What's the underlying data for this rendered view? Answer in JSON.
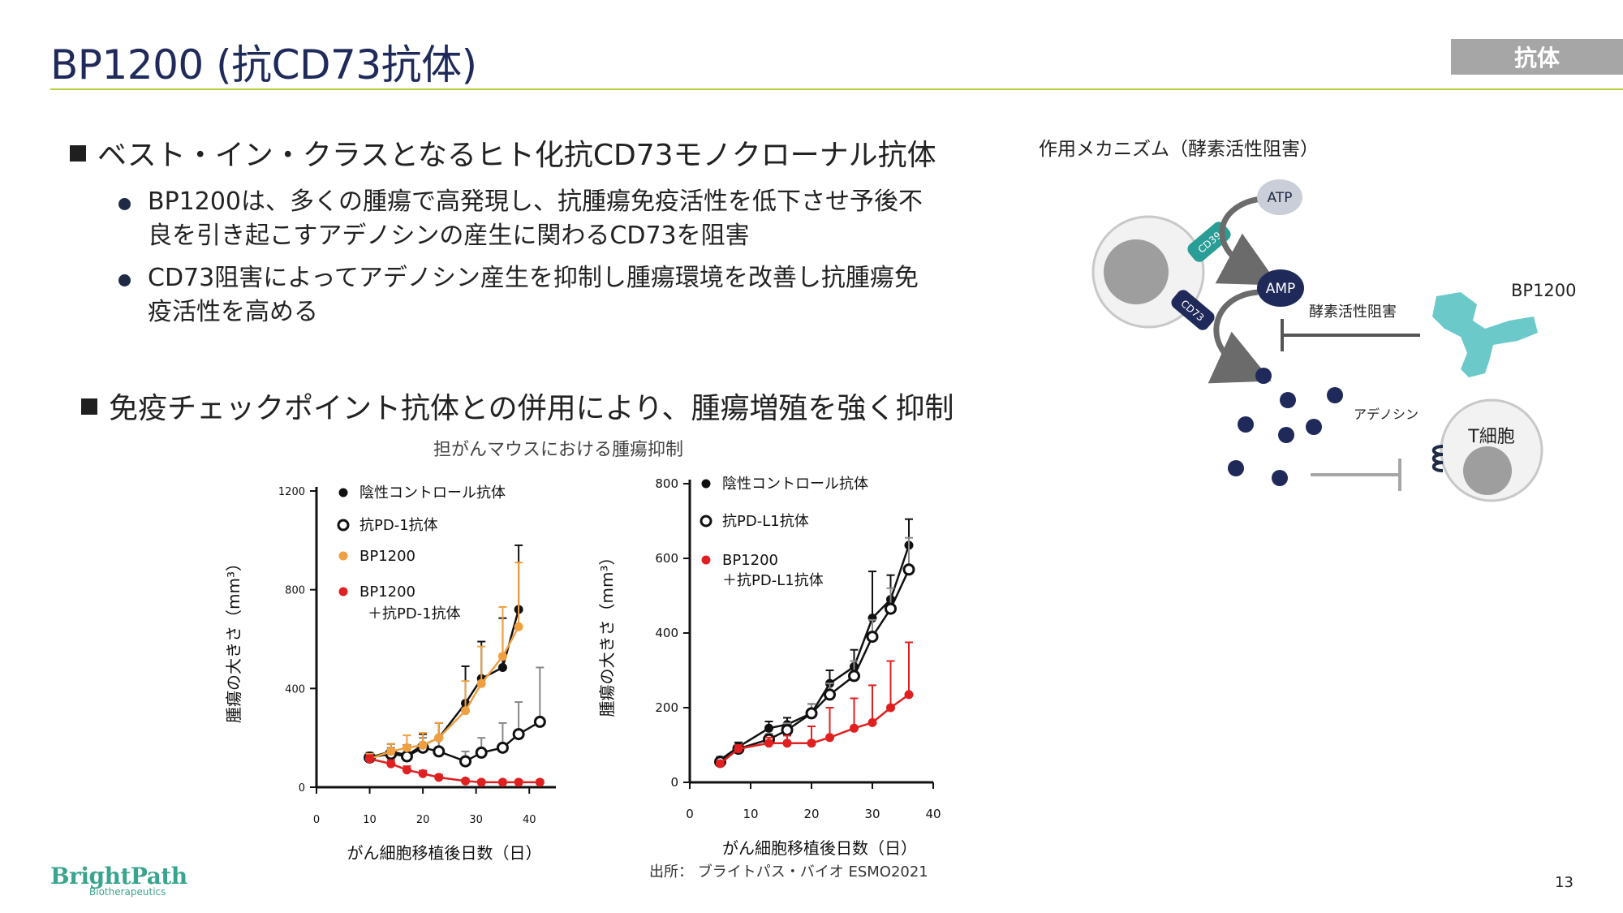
{
  "header": {
    "title": "BP1200 (抗CD73抗体)",
    "tag": "抗体"
  },
  "section1": {
    "heading": "ベスト・イン・クラスとなるヒト化抗CD73モノクローナル抗体",
    "bullets": [
      {
        "line1": "BP1200は、多くの腫瘍で高発現し、抗腫瘍免疫活性を低下させ予後不",
        "line2": "良を引き起こすアデノシンの産生に関わるCD73を阻害"
      },
      {
        "line1": "CD73阻害によってアデノシン産生を抑制し腫瘍環境を改善し抗腫瘍免",
        "line2": "疫活性を高める"
      }
    ]
  },
  "section2": {
    "heading": "免疫チェックポイント抗体との併用により、腫瘍増殖を強く抑制"
  },
  "figure": {
    "caption": "担がんマウスにおける腫瘍抑制"
  },
  "mechanism": {
    "title": "作用メカニズム（酵素活性阻害）",
    "atp": "ATP",
    "amp": "AMP",
    "cd39": "CD39",
    "cd73": "CD73",
    "inhibit_label": "酵素活性阻害",
    "drug": "BP1200",
    "adenosine": "アデノシン",
    "tcell": "T細胞"
  },
  "colors": {
    "navy": "#1f2a5a",
    "accent_rule": "#b6cf3e",
    "teal": "#6cc9c9",
    "gray": "#a6a6a6",
    "orange": "#f0a040",
    "red": "#e02020"
  },
  "chart_data": [
    {
      "type": "line",
      "xlabel": "がん細胞移植後日数（日）",
      "ylabel": "腫瘍の大きさ（mm³）",
      "xlim": [
        0,
        45
      ],
      "ylim": [
        0,
        1200
      ],
      "xticks": [
        0,
        10,
        20,
        30,
        40
      ],
      "yticks": [
        0,
        400,
        800,
        1200
      ],
      "legend": [
        "陰性コントロール抗体",
        "抗PD-1抗体",
        "BP1200",
        "BP1200",
        "＋抗PD-1抗体"
      ],
      "series": [
        {
          "name": "陰性コントロール抗体",
          "color": "#111111",
          "marker": "filled",
          "x": [
            10,
            14,
            17,
            20,
            23,
            28,
            31,
            35,
            38
          ],
          "y": [
            120,
            145,
            130,
            170,
            200,
            340,
            440,
            485,
            720
          ],
          "err": [
            20,
            30,
            40,
            45,
            60,
            150,
            150,
            200,
            260
          ]
        },
        {
          "name": "抗PD-1抗体",
          "color": "#111111",
          "marker": "open",
          "x": [
            10,
            14,
            17,
            20,
            23,
            28,
            31,
            35,
            38,
            42
          ],
          "y": [
            120,
            135,
            125,
            160,
            145,
            105,
            140,
            160,
            215,
            265
          ],
          "err": [
            20,
            25,
            30,
            40,
            60,
            40,
            60,
            100,
            130,
            220
          ]
        },
        {
          "name": "BP1200",
          "color": "#f0a040",
          "marker": "filled",
          "x": [
            10,
            14,
            17,
            20,
            23,
            28,
            31,
            35,
            38
          ],
          "y": [
            115,
            145,
            160,
            170,
            200,
            310,
            420,
            530,
            650
          ],
          "err": [
            20,
            30,
            50,
            50,
            60,
            120,
            150,
            200,
            260
          ]
        },
        {
          "name": "BP1200＋抗PD-1抗体",
          "color": "#e02020",
          "marker": "filled",
          "x": [
            10,
            14,
            17,
            20,
            23,
            28,
            31,
            35,
            38,
            42
          ],
          "y": [
            115,
            95,
            70,
            55,
            40,
            25,
            20,
            20,
            20,
            20
          ],
          "err": [
            15,
            15,
            15,
            12,
            10,
            8,
            8,
            8,
            8,
            8
          ]
        }
      ]
    },
    {
      "type": "line",
      "xlabel": "がん細胞移植後日数（日）",
      "ylabel": "腫瘍の大きさ（mm³）",
      "xlim": [
        0,
        40
      ],
      "ylim": [
        0,
        800
      ],
      "xticks": [
        0,
        10,
        20,
        30,
        40
      ],
      "yticks": [
        0,
        200,
        400,
        600,
        800
      ],
      "legend": [
        "陰性コントロール抗体",
        "抗PD-L1抗体",
        "BP1200",
        "＋抗PD-L1抗体"
      ],
      "series": [
        {
          "name": "陰性コントロール抗体",
          "color": "#111111",
          "marker": "filled",
          "x": [
            5,
            8,
            13,
            16,
            20,
            23,
            27,
            30,
            33,
            36
          ],
          "y": [
            60,
            95,
            145,
            155,
            185,
            265,
            310,
            440,
            490,
            635
          ],
          "err": [
            8,
            12,
            18,
            18,
            25,
            35,
            45,
            125,
            65,
            70
          ]
        },
        {
          "name": "抗PD-L1抗体",
          "color": "#111111",
          "marker": "open",
          "x": [
            5,
            8,
            13,
            16,
            20,
            23,
            27,
            30,
            33,
            36
          ],
          "y": [
            55,
            90,
            115,
            140,
            185,
            235,
            285,
            390,
            465,
            570
          ],
          "err": [
            8,
            12,
            15,
            18,
            25,
            30,
            40,
            45,
            55,
            85
          ]
        },
        {
          "name": "BP1200＋抗PD-L1抗体",
          "color": "#e02020",
          "marker": "filled",
          "x": [
            5,
            8,
            13,
            16,
            20,
            23,
            27,
            30,
            33,
            36
          ],
          "y": [
            50,
            90,
            105,
            105,
            105,
            120,
            145,
            160,
            200,
            235
          ],
          "err": [
            8,
            10,
            15,
            20,
            45,
            80,
            80,
            100,
            125,
            140
          ]
        }
      ]
    }
  ],
  "source": "出所： ブライトパス・バイオ ESMO2021",
  "page": "13",
  "logo": {
    "name": "BrightPath",
    "sub": "Biotherapeutics"
  }
}
